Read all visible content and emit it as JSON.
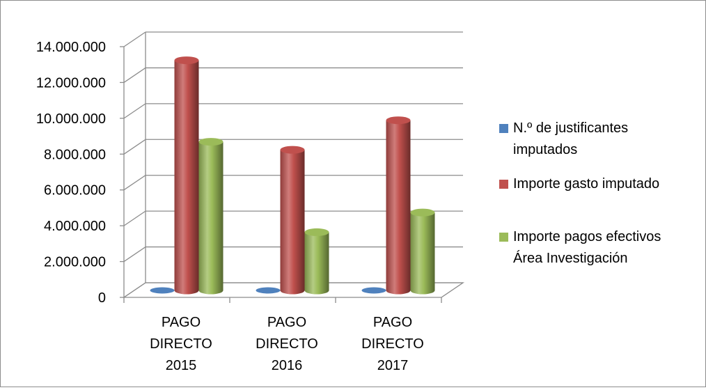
{
  "chart_data": {
    "type": "bar",
    "subtype": "3d-cylinder-clustered",
    "categories": [
      "PAGO DIRECTO 2015",
      "PAGO DIRECTO 2016",
      "PAGO DIRECTO 2017"
    ],
    "category_lines": [
      [
        "PAGO",
        "DIRECTO",
        "2015"
      ],
      [
        "PAGO",
        "DIRECTO",
        "2016"
      ],
      [
        "PAGO",
        "DIRECTO",
        "2017"
      ]
    ],
    "series": [
      {
        "name": "N.º de justificantes imputados",
        "name_lines": [
          "N.º de justificantes",
          "imputados"
        ],
        "color": "#4f81bd",
        "values": [
          60,
          50,
          50
        ]
      },
      {
        "name": "Importe gasto imputado",
        "name_lines": [
          "Importe gasto imputado"
        ],
        "color": "#c0504d",
        "values": [
          12850000,
          7850000,
          9500000
        ]
      },
      {
        "name": "Importe pagos efectivos Área Investigación",
        "name_lines": [
          "Importe pagos efectivos",
          "Área Investigación"
        ],
        "color": "#9bbb59",
        "values": [
          8300000,
          3250000,
          4350000
        ]
      }
    ],
    "ylim": [
      0,
      14000000
    ],
    "yticks": [
      0,
      2000000,
      4000000,
      6000000,
      8000000,
      10000000,
      12000000,
      14000000
    ],
    "ytick_labels": [
      "0",
      "2.000.000",
      "4.000.000",
      "6.000.000",
      "8.000.000",
      "10.000.000",
      "12.000.000",
      "14.000.000"
    ],
    "title": "",
    "xlabel": "",
    "ylabel": "",
    "grid": true,
    "legend_position": "right"
  }
}
